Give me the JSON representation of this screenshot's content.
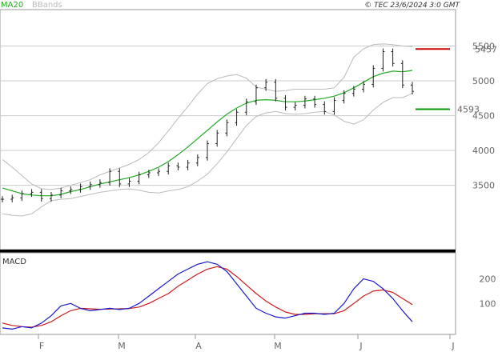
{
  "header": {
    "legend_ma": "MA20",
    "legend_bb": "BBands",
    "copyright": "© TEC 23/6/2024 3:0 GMT"
  },
  "colors": {
    "ma": "#22aa22",
    "bbands": "#bbbbbb",
    "resistance": "#cc0000",
    "support": "#009900",
    "macd": "#1a1acc",
    "signal": "#cc1a1a",
    "price": "#222222",
    "grid": "#cccccc"
  },
  "chart_data": [
    {
      "type": "line",
      "title": "",
      "x_labels": [
        "F",
        "M",
        "A",
        "M",
        "J",
        "J"
      ],
      "ylim": [
        2600,
        6000
      ],
      "y_ticks": [
        {
          "value": 3500,
          "label": "3500"
        },
        {
          "value": 4000,
          "label": "4000"
        },
        {
          "value": 4500,
          "label": "4500"
        },
        {
          "value": 5000,
          "label": "5000"
        },
        {
          "value": 5500,
          "label": "5500"
        }
      ],
      "levels": [
        {
          "name": "resistance",
          "value": 5457,
          "label": "5457"
        },
        {
          "name": "support",
          "value": 4593,
          "label": "4593"
        }
      ],
      "series": [
        {
          "name": "MA20",
          "values": [
            3460,
            3420,
            3380,
            3360,
            3350,
            3350,
            3370,
            3410,
            3440,
            3480,
            3520,
            3550,
            3580,
            3610,
            3650,
            3700,
            3760,
            3840,
            3940,
            4050,
            4170,
            4290,
            4410,
            4520,
            4610,
            4680,
            4720,
            4730,
            4720,
            4700,
            4700,
            4710,
            4730,
            4750,
            4780,
            4830,
            4900,
            4980,
            5060,
            5110,
            5140,
            5130,
            5150
          ]
        },
        {
          "name": "BBands",
          "values": [
            3870,
            3760,
            3640,
            3520,
            3450,
            3440,
            3460,
            3500,
            3540,
            3580,
            3650,
            3700,
            3750,
            3800,
            3870,
            3970,
            4110,
            4280,
            4460,
            4630,
            4810,
            4960,
            5030,
            5070,
            5090,
            5040,
            4910,
            4880,
            4850,
            4860,
            4880,
            4880,
            4880,
            4880,
            4900,
            5050,
            5340,
            5460,
            5520,
            5530,
            5520,
            5500,
            5490
          ]
        },
        {
          "name": "BBands lower",
          "values": [
            3090,
            3070,
            3060,
            3090,
            3190,
            3280,
            3300,
            3310,
            3340,
            3370,
            3400,
            3420,
            3440,
            3450,
            3430,
            3400,
            3390,
            3420,
            3440,
            3480,
            3560,
            3660,
            3810,
            3980,
            4170,
            4360,
            4490,
            4540,
            4560,
            4530,
            4520,
            4530,
            4550,
            4560,
            4510,
            4420,
            4380,
            4440,
            4580,
            4690,
            4760,
            4760,
            4820
          ]
        },
        {
          "name": "Price",
          "values": [
            3300,
            3320,
            3380,
            3400,
            3310,
            3360,
            3420,
            3440,
            3480,
            3510,
            3540,
            3700,
            3520,
            3560,
            3650,
            3680,
            3700,
            3780,
            3760,
            3820,
            3900,
            4100,
            4250,
            4400,
            4550,
            4700,
            4900,
            4980,
            4750,
            4620,
            4650,
            4740,
            4660,
            4560,
            4720,
            4820,
            4880,
            4950,
            5180,
            5420,
            5250,
            4940,
            4850
          ]
        }
      ]
    },
    {
      "type": "line",
      "title": "MACD",
      "x_labels": [
        "F",
        "M",
        "A",
        "M",
        "J",
        "J"
      ],
      "ylim": [
        -20,
        300
      ],
      "y_ticks": [
        {
          "value": 100,
          "label": "100"
        },
        {
          "value": 200,
          "label": "200"
        }
      ],
      "series": [
        {
          "name": "MACD",
          "values": [
            0,
            -5,
            5,
            0,
            20,
            50,
            90,
            100,
            80,
            70,
            75,
            80,
            75,
            80,
            100,
            130,
            160,
            190,
            220,
            240,
            260,
            270,
            260,
            230,
            180,
            130,
            80,
            60,
            45,
            40,
            50,
            60,
            60,
            55,
            60,
            100,
            160,
            200,
            190,
            160,
            120,
            70,
            25
          ]
        },
        {
          "name": "Signal",
          "values": [
            20,
            10,
            5,
            3,
            10,
            25,
            50,
            70,
            80,
            78,
            76,
            77,
            78,
            79,
            85,
            100,
            120,
            140,
            170,
            195,
            220,
            240,
            250,
            240,
            210,
            175,
            140,
            110,
            85,
            65,
            55,
            55,
            58,
            58,
            58,
            70,
            100,
            130,
            150,
            155,
            145,
            120,
            95
          ]
        }
      ]
    }
  ]
}
